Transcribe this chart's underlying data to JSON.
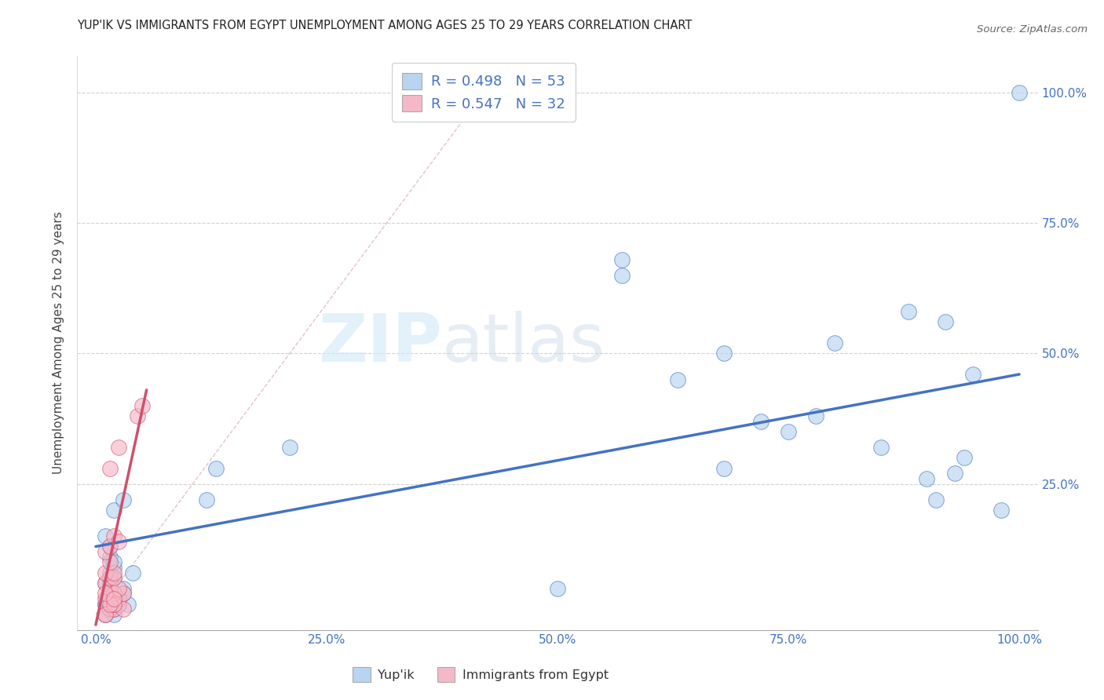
{
  "title": "YUP'IK VS IMMIGRANTS FROM EGYPT UNEMPLOYMENT AMONG AGES 25 TO 29 YEARS CORRELATION CHART",
  "source": "Source: ZipAtlas.com",
  "ylabel": "Unemployment Among Ages 25 to 29 years",
  "x_tick_positions": [
    0,
    25,
    50,
    75,
    100
  ],
  "y_tick_positions": [
    25,
    50,
    75,
    100
  ],
  "xlim": [
    -2,
    102
  ],
  "ylim": [
    -3,
    107
  ],
  "legend_r1": "R = 0.498",
  "legend_n1": "N = 53",
  "legend_r2": "R = 0.547",
  "legend_n2": "N = 32",
  "legend_label1": "Yup'ik",
  "legend_label2": "Immigrants from Egypt",
  "color_blue": "#b8d4f0",
  "color_pink": "#f5b8c8",
  "line_blue": "#4472c4",
  "line_pink": "#d0506a",
  "watermark_zip": "ZIP",
  "watermark_atlas": "atlas",
  "title_fontsize": 10.5,
  "yupik_x": [
    1.0,
    1.5,
    2.0,
    1.5,
    2.5,
    1.0,
    2.0,
    1.5,
    2.0,
    3.0,
    2.5,
    1.5,
    2.0,
    1.5,
    1.0,
    1.5,
    2.0,
    1.5,
    1.0,
    2.0,
    1.5,
    1.0,
    2.5,
    2.0,
    1.5,
    3.5,
    3.0,
    4.0,
    2.0,
    3.0,
    12.0,
    13.0,
    21.0,
    50.0,
    57.0,
    57.0,
    63.0,
    68.0,
    68.0,
    72.0,
    75.0,
    78.0,
    80.0,
    85.0,
    88.0,
    90.0,
    91.0,
    92.0,
    93.0,
    94.0,
    95.0,
    98.0,
    100.0
  ],
  "yupik_y": [
    2.0,
    3.0,
    4.0,
    5.0,
    2.0,
    6.0,
    7.0,
    8.0,
    9.0,
    5.0,
    3.0,
    11.0,
    10.0,
    13.0,
    15.0,
    7.0,
    4.0,
    1.0,
    0.0,
    0.0,
    1.0,
    2.0,
    3.0,
    1.0,
    6.0,
    2.0,
    4.0,
    8.0,
    20.0,
    22.0,
    22.0,
    28.0,
    32.0,
    5.0,
    65.0,
    68.0,
    45.0,
    28.0,
    50.0,
    37.0,
    35.0,
    38.0,
    52.0,
    32.0,
    58.0,
    26.0,
    22.0,
    56.0,
    27.0,
    30.0,
    46.0,
    20.0,
    100.0
  ],
  "egypt_x": [
    1.0,
    1.5,
    2.0,
    2.5,
    1.0,
    2.0,
    2.5,
    3.0,
    1.5,
    1.0,
    1.5,
    2.0,
    2.5,
    1.5,
    2.0,
    1.0,
    2.0,
    1.5,
    1.0,
    1.5,
    2.0,
    2.5,
    1.0,
    3.0,
    2.0,
    1.5,
    1.0,
    2.0,
    1.5,
    2.5,
    4.5,
    5.0
  ],
  "egypt_y": [
    0.0,
    1.0,
    1.0,
    2.0,
    3.0,
    2.0,
    3.0,
    4.0,
    5.0,
    6.0,
    5.0,
    4.0,
    5.0,
    7.0,
    7.0,
    8.0,
    8.0,
    10.0,
    12.0,
    13.0,
    15.0,
    14.0,
    0.0,
    1.0,
    2.0,
    2.0,
    4.0,
    3.0,
    28.0,
    32.0,
    38.0,
    40.0
  ],
  "blue_trendline_x": [
    0,
    100
  ],
  "blue_trendline_y": [
    13.0,
    46.0
  ],
  "pink_trendline_x": [
    0,
    5.5
  ],
  "pink_trendline_y": [
    -2.0,
    43.0
  ],
  "diag_line_x": [
    0,
    42
  ],
  "diag_line_y": [
    0,
    100
  ]
}
